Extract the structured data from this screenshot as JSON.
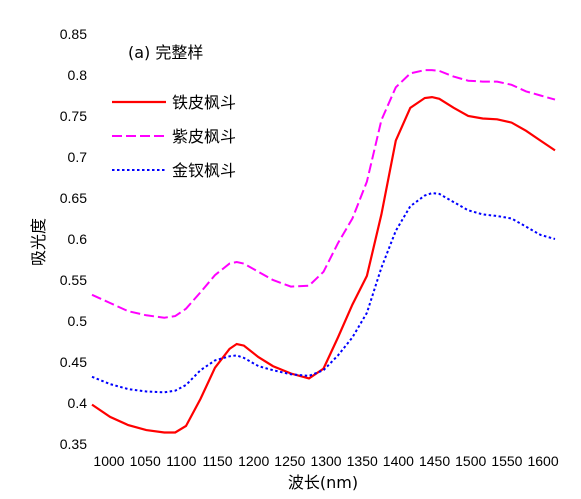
{
  "chart_data": {
    "type": "line",
    "title": "",
    "panel_label": "(a) 完整样",
    "xlabel": "波长(nm)",
    "ylabel": "吸光度",
    "xlim": [
      1000,
      1640
    ],
    "ylim": [
      0.35,
      0.85
    ],
    "xticks": [
      1000,
      1050,
      1100,
      1150,
      1200,
      1250,
      1300,
      1350,
      1400,
      1450,
      1500,
      1550,
      1600
    ],
    "yticks": [
      "0.35",
      "0.4",
      "0.45",
      "0.5",
      "0.55",
      "0.6",
      "0.65",
      "0.7",
      "0.75",
      "0.8",
      "0.85"
    ],
    "grid": false,
    "legend_position": "top-left",
    "series": [
      {
        "name": "铁皮枫斗",
        "color": "#ff0000",
        "style": "solid",
        "x": [
          1000,
          1025,
          1050,
          1075,
          1100,
          1115,
          1130,
          1150,
          1170,
          1190,
          1200,
          1210,
          1230,
          1250,
          1275,
          1300,
          1320,
          1340,
          1360,
          1380,
          1400,
          1420,
          1440,
          1460,
          1470,
          1480,
          1500,
          1520,
          1540,
          1560,
          1580,
          1600,
          1620,
          1640
        ],
        "y": [
          0.398,
          0.383,
          0.373,
          0.367,
          0.364,
          0.364,
          0.372,
          0.405,
          0.443,
          0.466,
          0.472,
          0.47,
          0.456,
          0.445,
          0.436,
          0.43,
          0.442,
          0.48,
          0.52,
          0.555,
          0.63,
          0.72,
          0.76,
          0.772,
          0.773,
          0.771,
          0.76,
          0.75,
          0.747,
          0.746,
          0.742,
          0.732,
          0.72,
          0.708
        ]
      },
      {
        "name": "紫皮枫斗",
        "color": "#ff00ff",
        "style": "dashed",
        "x": [
          1000,
          1025,
          1050,
          1075,
          1100,
          1115,
          1130,
          1150,
          1170,
          1190,
          1200,
          1210,
          1230,
          1250,
          1275,
          1300,
          1320,
          1340,
          1360,
          1380,
          1400,
          1420,
          1440,
          1460,
          1470,
          1480,
          1500,
          1520,
          1540,
          1560,
          1580,
          1600,
          1620,
          1640
        ],
        "y": [
          0.532,
          0.522,
          0.512,
          0.507,
          0.504,
          0.506,
          0.515,
          0.535,
          0.556,
          0.57,
          0.572,
          0.57,
          0.56,
          0.55,
          0.542,
          0.543,
          0.56,
          0.595,
          0.625,
          0.67,
          0.745,
          0.785,
          0.802,
          0.806,
          0.806,
          0.805,
          0.798,
          0.793,
          0.792,
          0.792,
          0.788,
          0.78,
          0.775,
          0.77
        ]
      },
      {
        "name": "金钗枫斗",
        "color": "#0000ff",
        "style": "dotted",
        "x": [
          1000,
          1025,
          1050,
          1075,
          1100,
          1115,
          1130,
          1150,
          1170,
          1190,
          1200,
          1210,
          1230,
          1250,
          1275,
          1300,
          1320,
          1340,
          1360,
          1380,
          1400,
          1420,
          1440,
          1460,
          1470,
          1480,
          1500,
          1520,
          1540,
          1560,
          1580,
          1600,
          1620,
          1640
        ],
        "y": [
          0.432,
          0.423,
          0.417,
          0.414,
          0.413,
          0.415,
          0.422,
          0.44,
          0.452,
          0.457,
          0.458,
          0.455,
          0.445,
          0.44,
          0.435,
          0.433,
          0.44,
          0.458,
          0.48,
          0.51,
          0.565,
          0.61,
          0.64,
          0.653,
          0.656,
          0.655,
          0.645,
          0.635,
          0.63,
          0.628,
          0.625,
          0.615,
          0.605,
          0.6
        ]
      }
    ]
  }
}
